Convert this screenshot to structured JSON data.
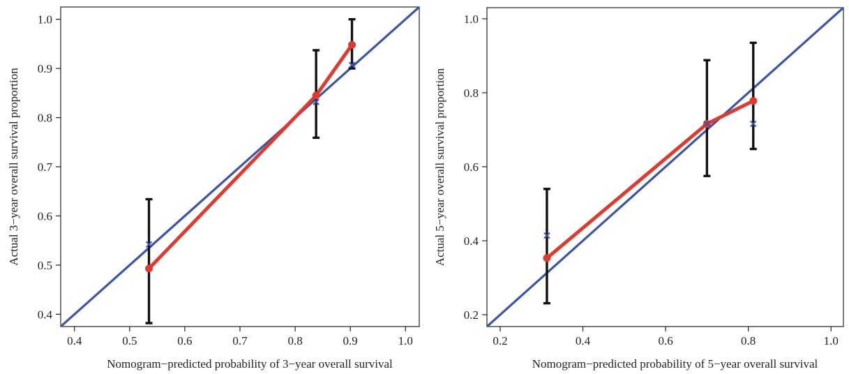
{
  "chart_data": [
    {
      "type": "line",
      "xlabel": "Nomogram−predicted probability of 3−year overall survival",
      "ylabel": "Actual 3−year overall survival proportion",
      "xlim": [
        0.375,
        1.025
      ],
      "ylim": [
        0.375,
        1.025
      ],
      "xticks": [
        "0.4",
        "0.5",
        "0.6",
        "0.7",
        "0.8",
        "0.9",
        "1.0"
      ],
      "yticks": [
        "0.4",
        "0.5",
        "0.6",
        "0.7",
        "0.8",
        "0.9",
        "1.0"
      ],
      "x": [
        0.535,
        0.838,
        0.903
      ],
      "calibrated": [
        0.493,
        0.845,
        0.948
      ],
      "bias_corrected": [
        0.542,
        0.832,
        0.907
      ],
      "ci_lower": [
        0.382,
        0.759,
        0.9
      ],
      "ci_upper": [
        0.634,
        0.937,
        1.0
      ],
      "colors": {
        "calibrated": "#e03a2e",
        "ideal": "#3a52b0",
        "error_bar": "#111111"
      }
    },
    {
      "type": "line",
      "xlabel": "Nomogram−predicted probability of 5−year overall survival",
      "ylabel": "Actual 5−year overall survival proportion",
      "xlim": [
        0.168,
        1.03
      ],
      "ylim": [
        0.168,
        1.03
      ],
      "xticks": [
        "0.2",
        "0.4",
        "0.6",
        "0.8",
        "1.0"
      ],
      "yticks": [
        "0.2",
        "0.4",
        "0.6",
        "0.8",
        "1.0"
      ],
      "x": [
        0.313,
        0.7,
        0.812
      ],
      "calibrated": [
        0.353,
        0.716,
        0.778
      ],
      "bias_corrected": [
        0.414,
        0.716,
        0.716
      ],
      "ci_lower": [
        0.231,
        0.575,
        0.648
      ],
      "ci_upper": [
        0.54,
        0.888,
        0.935
      ],
      "colors": {
        "calibrated": "#e03a2e",
        "ideal": "#3a52b0",
        "error_bar": "#111111"
      }
    }
  ]
}
